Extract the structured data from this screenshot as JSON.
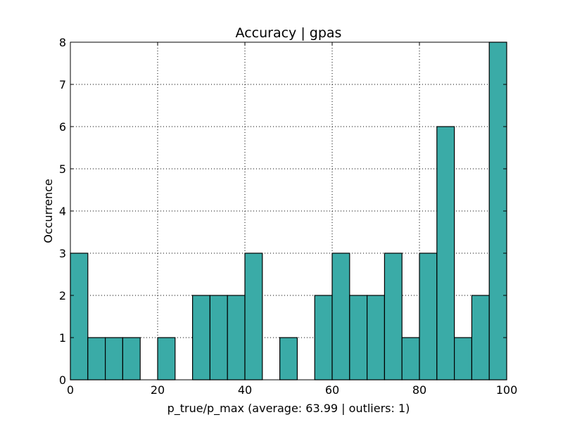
{
  "chart_data": {
    "type": "bar",
    "title": "Accuracy | gpas",
    "xlabel": "p_true/p_max (average: 63.99 | outliers: 1)",
    "ylabel": "Occurrence",
    "xlim": [
      0,
      100
    ],
    "ylim": [
      0,
      8
    ],
    "x_ticks": [
      "0",
      "20",
      "40",
      "60",
      "80",
      "100"
    ],
    "y_ticks": [
      "0",
      "1",
      "2",
      "3",
      "4",
      "5",
      "6",
      "7",
      "8"
    ],
    "grid": true,
    "bar_color": "#3aaba7",
    "bins": [
      {
        "x0": 0,
        "x1": 4,
        "value": 3
      },
      {
        "x0": 4,
        "x1": 8,
        "value": 1
      },
      {
        "x0": 8,
        "x1": 12,
        "value": 1
      },
      {
        "x0": 12,
        "x1": 16,
        "value": 1
      },
      {
        "x0": 16,
        "x1": 20,
        "value": 0
      },
      {
        "x0": 20,
        "x1": 24,
        "value": 1
      },
      {
        "x0": 24,
        "x1": 28,
        "value": 0
      },
      {
        "x0": 28,
        "x1": 32,
        "value": 2
      },
      {
        "x0": 32,
        "x1": 36,
        "value": 2
      },
      {
        "x0": 36,
        "x1": 40,
        "value": 2
      },
      {
        "x0": 40,
        "x1": 44,
        "value": 3
      },
      {
        "x0": 44,
        "x1": 48,
        "value": 0
      },
      {
        "x0": 48,
        "x1": 52,
        "value": 1
      },
      {
        "x0": 52,
        "x1": 56,
        "value": 0
      },
      {
        "x0": 56,
        "x1": 60,
        "value": 2
      },
      {
        "x0": 60,
        "x1": 64,
        "value": 3
      },
      {
        "x0": 64,
        "x1": 68,
        "value": 2
      },
      {
        "x0": 68,
        "x1": 72,
        "value": 2
      },
      {
        "x0": 72,
        "x1": 76,
        "value": 3
      },
      {
        "x0": 76,
        "x1": 80,
        "value": 1
      },
      {
        "x0": 80,
        "x1": 84,
        "value": 3
      },
      {
        "x0": 84,
        "x1": 88,
        "value": 6
      },
      {
        "x0": 88,
        "x1": 92,
        "value": 1
      },
      {
        "x0": 92,
        "x1": 96,
        "value": 2
      },
      {
        "x0": 96,
        "x1": 100,
        "value": 8
      }
    ]
  }
}
